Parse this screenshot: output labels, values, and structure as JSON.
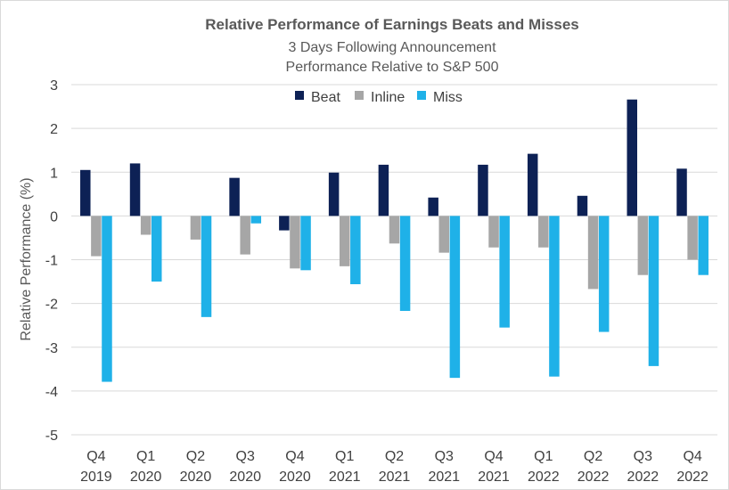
{
  "chart_data": {
    "type": "bar",
    "title": "Relative Performance of Earnings Beats and Misses",
    "subtitle_lines": [
      "3 Days Following Announcement",
      "Performance Relative to S&P 500"
    ],
    "xlabel": "",
    "ylabel": "Relative Performance (%)",
    "ylim": [
      -5,
      3
    ],
    "yticks": [
      3,
      2,
      1,
      0,
      -1,
      -2,
      -3,
      -4,
      -5
    ],
    "grid": true,
    "legend_position": "top-center",
    "categories": [
      [
        "Q4",
        "2019"
      ],
      [
        "Q1",
        "2020"
      ],
      [
        "Q2",
        "2020"
      ],
      [
        "Q3",
        "2020"
      ],
      [
        "Q4",
        "2020"
      ],
      [
        "Q1",
        "2021"
      ],
      [
        "Q2",
        "2021"
      ],
      [
        "Q3",
        "2021"
      ],
      [
        "Q4",
        "2021"
      ],
      [
        "Q1",
        "2022"
      ],
      [
        "Q2",
        "2022"
      ],
      [
        "Q3",
        "2022"
      ],
      [
        "Q4",
        "2022"
      ]
    ],
    "series": [
      {
        "name": "Beat",
        "color": "#0d2155",
        "values": [
          1.05,
          1.2,
          null,
          0.87,
          -0.33,
          0.99,
          1.17,
          0.42,
          1.17,
          1.42,
          0.46,
          2.66,
          1.08
        ]
      },
      {
        "name": "Inline",
        "color": "#a6a6a6",
        "values": [
          -0.92,
          -0.43,
          -0.54,
          -0.88,
          -1.2,
          -1.15,
          -0.63,
          -0.84,
          -0.72,
          -0.72,
          -1.67,
          -1.35,
          -1.0
        ]
      },
      {
        "name": "Miss",
        "color": "#1fb1e8",
        "values": [
          -3.79,
          -1.5,
          -2.31,
          -0.17,
          -1.24,
          -1.56,
          -2.17,
          -3.7,
          -2.55,
          -3.67,
          -2.65,
          -3.43,
          -1.35
        ]
      }
    ]
  }
}
